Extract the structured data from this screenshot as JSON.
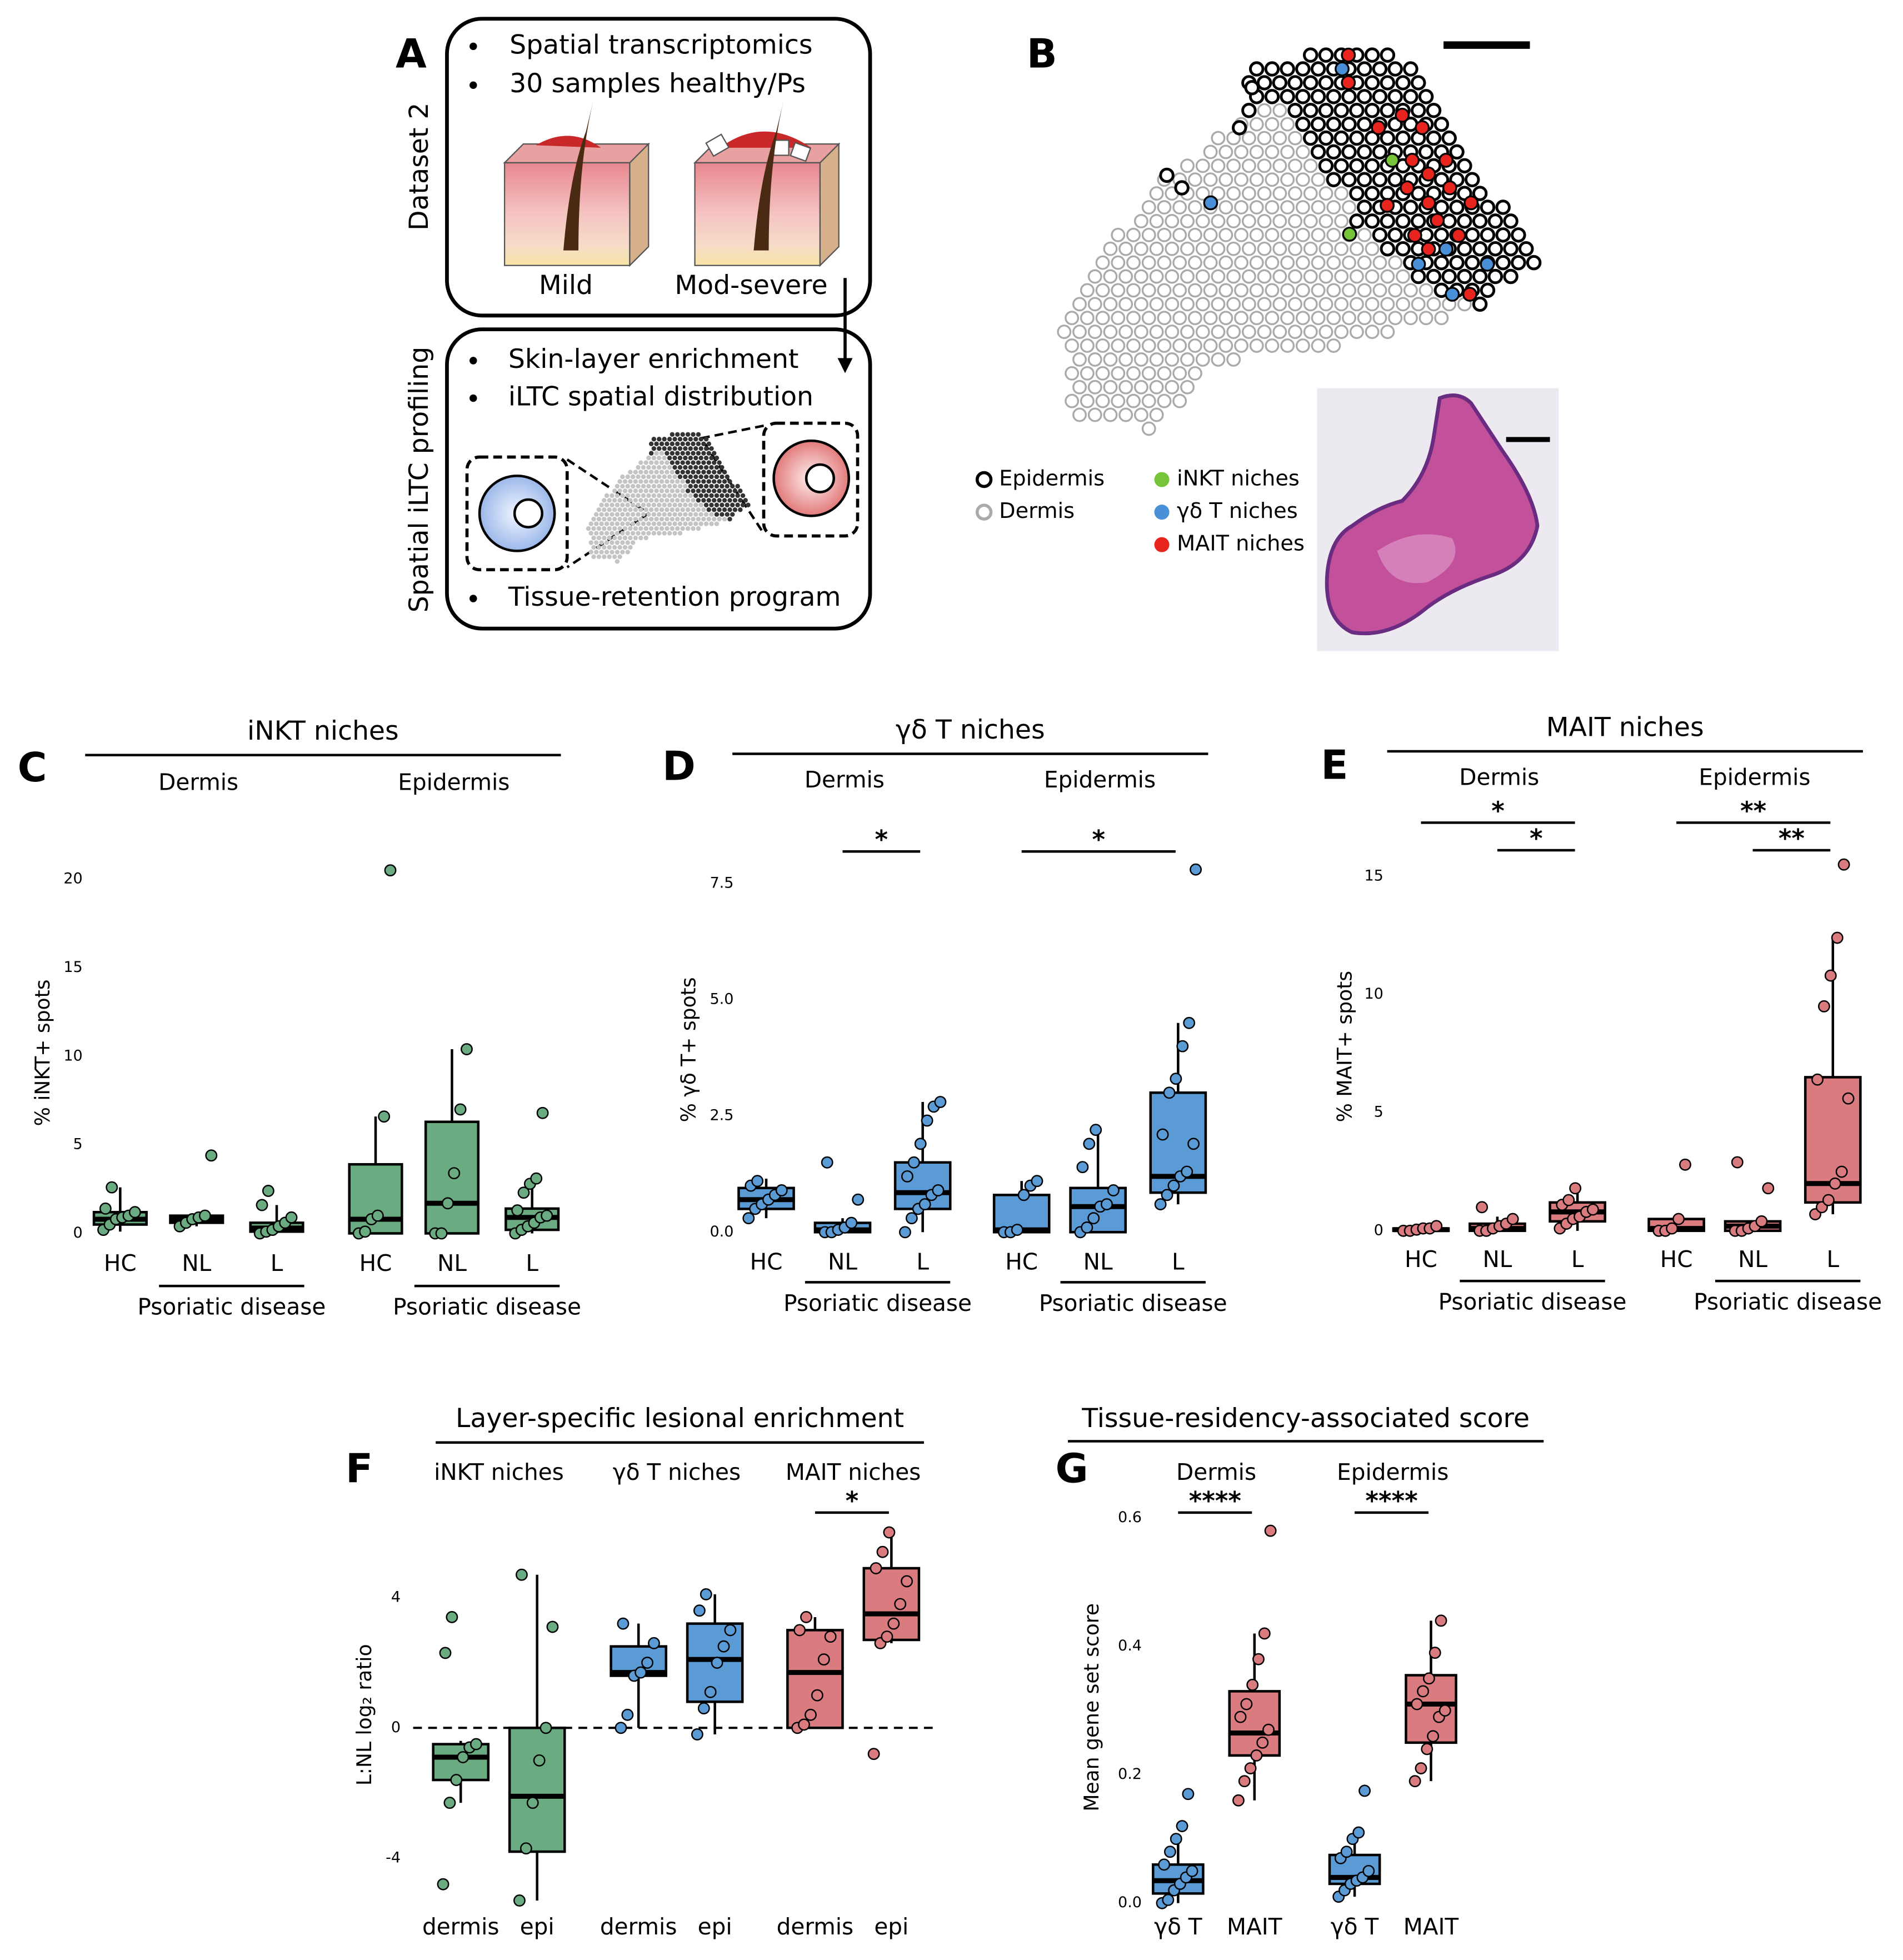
{
  "panel_a": {
    "letter": "A",
    "box1_label": "Dataset 2",
    "bullets1": [
      "Spatial transcriptomics",
      "30 samples healthy/Ps"
    ],
    "captions": [
      "Mild",
      "Mod-severe"
    ],
    "box2_label": "Spatial iLTC profiling",
    "bullets2": [
      "Skin-layer enrichment",
      "iLTC spatial distribution",
      "Tissue-retention program"
    ]
  },
  "panel_b": {
    "letter": "B",
    "legend": [
      {
        "label": "Epidermis",
        "color": "#000000"
      },
      {
        "label": "Dermis",
        "color": "#aaaaaa"
      },
      {
        "label": "iNKT niches",
        "color": "#77c43a"
      },
      {
        "label": "γδ T niches",
        "color": "#4a90d9"
      },
      {
        "label": "MAIT niches",
        "color": "#e8241e"
      }
    ]
  },
  "chart_data": [
    {
      "type": "box",
      "letter": "C",
      "title": "iNKT niches",
      "ylabel": "% iNKT+ spots",
      "ylim": [
        -0.6,
        21
      ],
      "yticks": [
        0,
        5,
        10,
        15,
        20
      ],
      "facets": [
        {
          "name": "Dermis",
          "categories": [
            "HC",
            "NL",
            "L"
          ],
          "colors": [
            "#6aab82",
            "#6aab82",
            "#6aab82"
          ],
          "boxes": [
            [
              0.1,
              0.5,
              0.8,
              1.2,
              2.6
            ],
            [
              0.4,
              0.6,
              0.8,
              1.0,
              1.0
            ],
            [
              0,
              0.1,
              0.3,
              0.6,
              1.6
            ]
          ],
          "points": [
            [
              0.2,
              0.5,
              0.8,
              0.9,
              1.0,
              1.2,
              1.4,
              2.6
            ],
            [
              0.4,
              0.6,
              0.8,
              0.9,
              1.0,
              4.4
            ],
            [
              0,
              0.1,
              0.2,
              0.4,
              0.6,
              0.9,
              1.6,
              2.4
            ]
          ],
          "bracket": {
            "label": "Psoriatic disease",
            "categories": [
              "NL",
              "L"
            ]
          }
        },
        {
          "name": "Epidermis",
          "categories": [
            "HC",
            "NL",
            "L"
          ],
          "colors": [
            "#6aab82",
            "#6aab82",
            "#6aab82"
          ],
          "boxes": [
            [
              0,
              0,
              0.8,
              3.9,
              6.6
            ],
            [
              0,
              0,
              1.7,
              6.3,
              10.4
            ],
            [
              0,
              0.2,
              0.9,
              1.4,
              3.1
            ]
          ],
          "points": [
            [
              0,
              0.1,
              0.8,
              1.0,
              6.6,
              20.5
            ],
            [
              0,
              0,
              1.7,
              3.4,
              7.0,
              10.4
            ],
            [
              0,
              0.2,
              0.4,
              0.6,
              0.9,
              1.0,
              1.3,
              2.3,
              2.8,
              3.1,
              6.8
            ]
          ],
          "bracket": {
            "label": "Psoriatic disease",
            "categories": [
              "NL",
              "L"
            ]
          }
        }
      ]
    },
    {
      "type": "box",
      "letter": "D",
      "title": "γδ T niches",
      "ylabel": "% γδ T+ spots",
      "ylim": [
        -0.15,
        8.0
      ],
      "yticks": [
        {
          "value": 0,
          "label": "0.0"
        },
        {
          "value": 2.5,
          "label": "2.5"
        },
        {
          "value": 5,
          "label": "5.0"
        },
        {
          "value": 7.5,
          "label": "7.5"
        }
      ],
      "facets": [
        {
          "name": "Dermis",
          "categories": [
            "HC",
            "NL",
            "L"
          ],
          "colors": [
            "#5b9bd5",
            "#5b9bd5",
            "#5b9bd5"
          ],
          "boxes": [
            [
              0.3,
              0.5,
              0.7,
              0.95,
              1.15
            ],
            [
              0,
              0,
              0.05,
              0.2,
              0.3
            ],
            [
              0,
              0.5,
              0.85,
              1.5,
              2.8
            ]
          ],
          "points": [
            [
              0.3,
              0.5,
              0.6,
              0.7,
              0.8,
              0.9,
              1.0,
              1.1
            ],
            [
              0,
              0,
              0.05,
              0.1,
              0.2,
              0.7,
              1.5
            ],
            [
              0,
              0.3,
              0.5,
              0.6,
              0.8,
              0.9,
              1.2,
              1.5,
              1.9,
              2.4,
              2.7,
              2.8
            ]
          ],
          "bracket": {
            "label": "Psoriatic disease",
            "categories": [
              "NL",
              "L"
            ]
          },
          "annotations": [
            {
              "text": "*",
              "between": [
                "NL",
                "L"
              ]
            }
          ]
        },
        {
          "name": "Epidermis",
          "categories": [
            "HC",
            "NL",
            "L"
          ],
          "colors": [
            "#5b9bd5",
            "#5b9bd5",
            "#5b9bd5"
          ],
          "boxes": [
            [
              0,
              0,
              0.05,
              0.8,
              1.1
            ],
            [
              0,
              0,
              0.55,
              0.95,
              2.2
            ],
            [
              0.6,
              0.85,
              1.2,
              3.0,
              4.5
            ]
          ],
          "points": [
            [
              0,
              0,
              0.05,
              0.8,
              1.0,
              1.1
            ],
            [
              0,
              0.1,
              0.3,
              0.55,
              0.6,
              0.9,
              1.4,
              1.9,
              2.2
            ],
            [
              0.6,
              0.8,
              1.0,
              1.2,
              1.3,
              1.9,
              2.1,
              3.0,
              3.3,
              4.0,
              4.5,
              7.8
            ]
          ],
          "bracket": {
            "label": "Psoriatic disease",
            "categories": [
              "NL",
              "L"
            ]
          },
          "annotations": [
            {
              "text": "*",
              "between": [
                "HC",
                "L"
              ]
            }
          ]
        }
      ]
    },
    {
      "type": "box",
      "letter": "E",
      "title": "MAIT niches",
      "ylabel": "% MAIT+ spots",
      "ylim": [
        -0.4,
        16
      ],
      "yticks": [
        0,
        5,
        10,
        15
      ],
      "facets": [
        {
          "name": "Dermis",
          "categories": [
            "HC",
            "NL",
            "L"
          ],
          "colors": [
            "#d97b7f",
            "#d97b7f",
            "#d97b7f"
          ],
          "boxes": [
            [
              0,
              0,
              0.05,
              0.1,
              0.2
            ],
            [
              0,
              0,
              0.1,
              0.3,
              0.6
            ],
            [
              0,
              0.4,
              0.8,
              1.2,
              1.8
            ]
          ],
          "points": [
            [
              0,
              0,
              0.05,
              0.1,
              0.1,
              0.2
            ],
            [
              0,
              0,
              0.1,
              0.2,
              0.3,
              0.5,
              1.0
            ],
            [
              0.1,
              0.3,
              0.5,
              0.6,
              0.8,
              0.9,
              1.1,
              1.3,
              1.8
            ]
          ],
          "bracket": {
            "label": "Psoriatic disease",
            "categories": [
              "NL",
              "L"
            ]
          },
          "annotations": [
            {
              "text": "*",
              "between": [
                "HC",
                "L"
              ]
            },
            {
              "text": "*",
              "between": [
                "NL",
                "L"
              ]
            }
          ]
        },
        {
          "name": "Epidermis",
          "categories": [
            "HC",
            "NL",
            "L"
          ],
          "colors": [
            "#d97b7f",
            "#d97b7f",
            "#d97b7f"
          ],
          "boxes": [
            [
              0,
              0,
              0.1,
              0.5,
              0.5
            ],
            [
              0,
              0,
              0.2,
              0.4,
              0.4
            ],
            [
              0.7,
              1.2,
              2.0,
              6.5,
              12.5
            ]
          ],
          "points": [
            [
              0,
              0,
              0.1,
              0.5,
              2.8
            ],
            [
              0,
              0,
              0.1,
              0.2,
              0.4,
              1.8,
              2.9
            ],
            [
              0.7,
              1.0,
              1.3,
              2.0,
              2.5,
              5.6,
              6.4,
              9.5,
              10.8,
              12.4,
              15.5
            ]
          ],
          "bracket": {
            "label": "Psoriatic disease",
            "categories": [
              "NL",
              "L"
            ]
          },
          "annotations": [
            {
              "text": "**",
              "between": [
                "HC",
                "L"
              ]
            },
            {
              "text": "**",
              "between": [
                "NL",
                "L"
              ]
            }
          ]
        }
      ]
    },
    {
      "type": "box",
      "letter": "F",
      "title": "Layer-specific lesional enrichment",
      "ylabel": "L:NL log₂ ratio",
      "ylim": [
        -5.5,
        6.3
      ],
      "yticks": [
        -4,
        0,
        4
      ],
      "reference_line": 0,
      "facets": [
        {
          "name": "iNKT niches",
          "categories": [
            "dermis",
            "epi"
          ],
          "colors": [
            "#6aab82",
            "#6aab82"
          ],
          "boxes": [
            [
              -2.3,
              -1.6,
              -0.9,
              -0.5,
              -0.4
            ],
            [
              -5.3,
              -3.8,
              -2.1,
              0,
              4.7
            ]
          ],
          "points": [
            [
              -4.8,
              -2.3,
              -1.6,
              -0.9,
              -0.6,
              -0.5,
              2.3,
              3.4
            ],
            [
              -5.3,
              -3.7,
              -2.3,
              -1.0,
              0,
              3.1,
              4.7
            ]
          ]
        },
        {
          "name": "γδ T niches",
          "categories": [
            "dermis",
            "epi"
          ],
          "colors": [
            "#5b9bd5",
            "#5b9bd5"
          ],
          "boxes": [
            [
              0,
              1.6,
              1.7,
              2.5,
              3.2
            ],
            [
              -0.2,
              0.8,
              2.1,
              3.2,
              4.1
            ]
          ],
          "points": [
            [
              0,
              0.4,
              1.6,
              1.7,
              2.0,
              2.6,
              3.2
            ],
            [
              -0.2,
              0.6,
              1.1,
              2.0,
              2.5,
              3.0,
              3.6,
              4.1
            ]
          ]
        },
        {
          "name": "MAIT niches",
          "categories": [
            "dermis",
            "epi"
          ],
          "colors": [
            "#d97b7f",
            "#d97b7f"
          ],
          "boxes": [
            [
              0,
              0,
              1.7,
              3.0,
              3.4
            ],
            [
              2.6,
              2.7,
              3.5,
              4.9,
              6.0
            ]
          ],
          "points": [
            [
              0,
              0.1,
              0.4,
              1.0,
              2.1,
              2.8,
              3.0,
              3.4
            ],
            [
              -0.8,
              2.6,
              2.8,
              3.2,
              3.8,
              4.5,
              4.9,
              5.4,
              6.0
            ]
          ],
          "annotations": [
            {
              "text": "*",
              "between": [
                "dermis",
                "epi"
              ]
            }
          ]
        }
      ]
    },
    {
      "type": "box",
      "letter": "G",
      "title": "Tissue-residency-associated score",
      "ylabel": "Mean gene set score",
      "ylim": [
        -0.01,
        0.62
      ],
      "yticks": [
        {
          "value": 0,
          "label": "0.0"
        },
        0.2,
        0.4,
        0.6
      ],
      "facets": [
        {
          "name": "Dermis",
          "categories": [
            "γδ T",
            "MAIT"
          ],
          "colors": [
            "#5b9bd5",
            "#d97b7f"
          ],
          "boxes": [
            [
              0,
              0.015,
              0.035,
              0.06,
              0.1
            ],
            [
              0.16,
              0.23,
              0.265,
              0.33,
              0.42
            ]
          ],
          "points": [
            [
              0,
              0.005,
              0.02,
              0.03,
              0.04,
              0.05,
              0.06,
              0.08,
              0.1,
              0.12,
              0.17
            ],
            [
              0.16,
              0.19,
              0.21,
              0.23,
              0.25,
              0.27,
              0.29,
              0.31,
              0.34,
              0.38,
              0.42,
              0.58
            ]
          ],
          "annotations": [
            {
              "text": "****",
              "between": [
                "γδ T",
                "MAIT"
              ]
            }
          ]
        },
        {
          "name": "Epidermis",
          "categories": [
            "γδ T",
            "MAIT"
          ],
          "colors": [
            "#5b9bd5",
            "#d97b7f"
          ],
          "boxes": [
            [
              0.01,
              0.03,
              0.04,
              0.075,
              0.11
            ],
            [
              0.19,
              0.25,
              0.31,
              0.355,
              0.44
            ]
          ],
          "points": [
            [
              0.01,
              0.02,
              0.03,
              0.035,
              0.04,
              0.05,
              0.07,
              0.08,
              0.1,
              0.11,
              0.175
            ],
            [
              0.19,
              0.21,
              0.24,
              0.26,
              0.29,
              0.3,
              0.31,
              0.33,
              0.35,
              0.39,
              0.44
            ]
          ],
          "annotations": [
            {
              "text": "****",
              "between": [
                "γδ T",
                "MAIT"
              ]
            }
          ]
        }
      ]
    }
  ]
}
